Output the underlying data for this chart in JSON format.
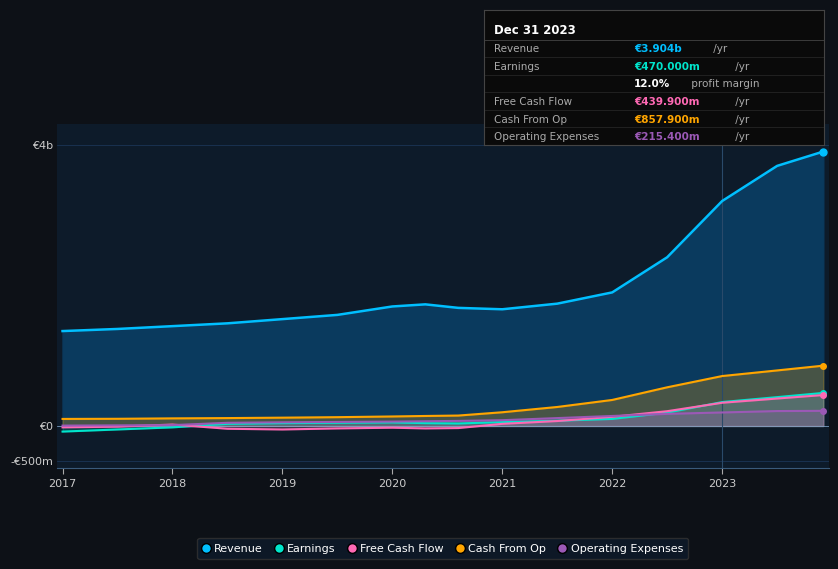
{
  "bg_color": "#0d1117",
  "plot_bg_color": "#0d1b2a",
  "years": [
    2017.0,
    2017.5,
    2018.0,
    2018.5,
    2019.0,
    2019.5,
    2020.0,
    2020.3,
    2020.6,
    2021.0,
    2021.5,
    2022.0,
    2022.5,
    2023.0,
    2023.5,
    2023.92
  ],
  "revenue": [
    1350,
    1380,
    1420,
    1460,
    1520,
    1580,
    1700,
    1730,
    1680,
    1660,
    1740,
    1900,
    2400,
    3200,
    3700,
    3904
  ],
  "earnings": [
    -80,
    -50,
    -20,
    30,
    40,
    45,
    50,
    40,
    35,
    55,
    75,
    100,
    190,
    340,
    410,
    470
  ],
  "free_cash_flow": [
    -20,
    -10,
    20,
    -40,
    -50,
    -35,
    -25,
    -35,
    -30,
    30,
    70,
    130,
    210,
    330,
    390,
    440
  ],
  "cash_from_op": [
    100,
    102,
    108,
    112,
    118,
    125,
    135,
    142,
    148,
    195,
    270,
    370,
    550,
    710,
    790,
    858
  ],
  "operating_expenses": [
    5,
    8,
    12,
    45,
    52,
    57,
    62,
    67,
    72,
    82,
    112,
    142,
    172,
    192,
    212,
    215
  ],
  "revenue_color": "#00bfff",
  "revenue_fill": "#0a3a5e",
  "earnings_color": "#00e5cc",
  "free_cash_flow_color": "#ff69b4",
  "cash_from_op_color": "#ffa500",
  "operating_expenses_color": "#9b59b6",
  "ylim_min": -600,
  "ylim_max": 4300,
  "yticks": [
    -500,
    0,
    4000
  ],
  "ytick_labels": [
    "-€500m",
    "€0",
    "€4b"
  ],
  "xticks": [
    2017,
    2018,
    2019,
    2020,
    2021,
    2022,
    2023
  ],
  "grid_color": "#1e3a5f",
  "info_box": {
    "title": "Dec 31 2023",
    "rows": [
      {
        "label": "Revenue",
        "value": "€3.904b",
        "value_color": "#00bfff",
        "suffix": " /yr"
      },
      {
        "label": "Earnings",
        "value": "€470.000m",
        "value_color": "#00e5cc",
        "suffix": " /yr"
      },
      {
        "label": "",
        "value": "12.0%",
        "value_color": "#ffffff",
        "suffix": " profit margin"
      },
      {
        "label": "Free Cash Flow",
        "value": "€439.900m",
        "value_color": "#ff69b4",
        "suffix": " /yr"
      },
      {
        "label": "Cash From Op",
        "value": "€857.900m",
        "value_color": "#ffa500",
        "suffix": " /yr"
      },
      {
        "label": "Operating Expenses",
        "value": "€215.400m",
        "value_color": "#9b59b6",
        "suffix": " /yr"
      }
    ]
  },
  "legend": [
    {
      "label": "Revenue",
      "color": "#00bfff"
    },
    {
      "label": "Earnings",
      "color": "#00e5cc"
    },
    {
      "label": "Free Cash Flow",
      "color": "#ff69b4"
    },
    {
      "label": "Cash From Op",
      "color": "#ffa500"
    },
    {
      "label": "Operating Expenses",
      "color": "#9b59b6"
    }
  ]
}
